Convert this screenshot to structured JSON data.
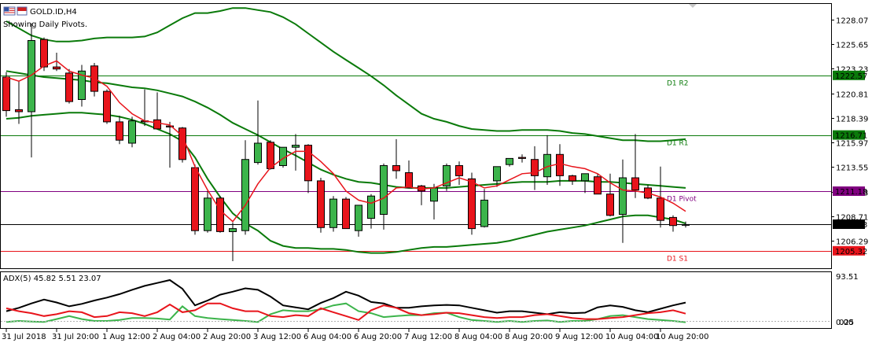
{
  "header": {
    "symbol_label": "GOLD.ID,H4",
    "indicator_note": "Showing Daily Pivots."
  },
  "colors": {
    "bull": "#3cb44b",
    "bear": "#e8141b",
    "band": "#0a7a0a",
    "ma": "#e8141b",
    "pivot_r": "#0a7a0a",
    "pivot_p": "#800080",
    "pivot_s": "#e8141b",
    "adx_main": "#000000",
    "adx_plus": "#3cb44b",
    "adx_minus": "#e8141b"
  },
  "chart_data": [
    {
      "type": "candlestick",
      "title": "GOLD.ID,H4",
      "subtitle": "Showing Daily Pivots.",
      "ylim": [
        1203.6,
        1229.6
      ],
      "y_ticks": [
        1228.07,
        1225.65,
        1223.23,
        1220.81,
        1218.39,
        1215.97,
        1213.55,
        1211.13,
        1208.71,
        1206.29
      ],
      "x_labels": [
        "31 Jul 2018",
        "31 Jul 20:00",
        "1 Aug 12:00",
        "2 Aug 04:00",
        "2 Aug 20:00",
        "3 Aug 12:00",
        "6 Aug 04:00",
        "6 Aug 20:00",
        "7 Aug 12:00",
        "8 Aug 04:00",
        "8 Aug 20:00",
        "9 Aug 12:00",
        "10 Aug 04:00",
        "10 Aug 20:00"
      ],
      "candles": [
        {
          "o": 1222.4,
          "h": 1222.9,
          "l": 1218.5,
          "c": 1219.1
        },
        {
          "o": 1219.2,
          "h": 1222.0,
          "l": 1217.8,
          "c": 1219.0
        },
        {
          "o": 1219.0,
          "h": 1227.7,
          "l": 1214.5,
          "c": 1226.0
        },
        {
          "o": 1226.1,
          "h": 1226.3,
          "l": 1223.0,
          "c": 1223.4
        },
        {
          "o": 1223.4,
          "h": 1224.8,
          "l": 1223.0,
          "c": 1223.2
        },
        {
          "o": 1222.8,
          "h": 1223.2,
          "l": 1219.8,
          "c": 1220.0
        },
        {
          "o": 1220.2,
          "h": 1223.6,
          "l": 1219.5,
          "c": 1223.0
        },
        {
          "o": 1223.5,
          "h": 1223.8,
          "l": 1220.5,
          "c": 1221.0
        },
        {
          "o": 1221.0,
          "h": 1221.2,
          "l": 1217.8,
          "c": 1218.0
        },
        {
          "o": 1218.0,
          "h": 1218.6,
          "l": 1215.8,
          "c": 1216.2
        },
        {
          "o": 1215.9,
          "h": 1218.5,
          "l": 1215.5,
          "c": 1218.1
        },
        {
          "o": 1218.1,
          "h": 1221.2,
          "l": 1217.6,
          "c": 1218.0
        },
        {
          "o": 1218.2,
          "h": 1220.9,
          "l": 1217.4,
          "c": 1217.3
        },
        {
          "o": 1217.6,
          "h": 1218.0,
          "l": 1213.5,
          "c": 1217.5
        },
        {
          "o": 1217.4,
          "h": 1217.5,
          "l": 1214.0,
          "c": 1214.3
        },
        {
          "o": 1213.5,
          "h": 1213.8,
          "l": 1206.9,
          "c": 1207.3
        },
        {
          "o": 1207.3,
          "h": 1211.2,
          "l": 1207.1,
          "c": 1210.5
        },
        {
          "o": 1210.5,
          "h": 1210.7,
          "l": 1207.1,
          "c": 1207.2
        },
        {
          "o": 1207.2,
          "h": 1208.1,
          "l": 1204.3,
          "c": 1207.5
        },
        {
          "o": 1207.3,
          "h": 1216.2,
          "l": 1206.9,
          "c": 1214.3
        },
        {
          "o": 1214.0,
          "h": 1220.1,
          "l": 1213.8,
          "c": 1215.9
        },
        {
          "o": 1216.0,
          "h": 1216.2,
          "l": 1213.3,
          "c": 1213.4
        },
        {
          "o": 1213.7,
          "h": 1215.3,
          "l": 1213.5,
          "c": 1215.5
        },
        {
          "o": 1215.5,
          "h": 1216.8,
          "l": 1213.2,
          "c": 1215.7
        },
        {
          "o": 1215.7,
          "h": 1215.8,
          "l": 1211.0,
          "c": 1212.2
        },
        {
          "o": 1212.2,
          "h": 1212.5,
          "l": 1207.1,
          "c": 1207.6
        },
        {
          "o": 1207.6,
          "h": 1210.7,
          "l": 1207.2,
          "c": 1210.4
        },
        {
          "o": 1210.4,
          "h": 1210.6,
          "l": 1207.5,
          "c": 1207.5
        },
        {
          "o": 1207.3,
          "h": 1209.8,
          "l": 1206.7,
          "c": 1209.8
        },
        {
          "o": 1208.5,
          "h": 1210.9,
          "l": 1207.5,
          "c": 1210.7
        },
        {
          "o": 1208.9,
          "h": 1213.9,
          "l": 1207.4,
          "c": 1213.7
        },
        {
          "o": 1213.7,
          "h": 1216.3,
          "l": 1212.4,
          "c": 1213.2
        },
        {
          "o": 1213.0,
          "h": 1214.2,
          "l": 1211.5,
          "c": 1211.5
        },
        {
          "o": 1211.7,
          "h": 1211.8,
          "l": 1209.8,
          "c": 1211.2
        },
        {
          "o": 1210.2,
          "h": 1211.9,
          "l": 1208.4,
          "c": 1211.5
        },
        {
          "o": 1211.7,
          "h": 1213.9,
          "l": 1211.2,
          "c": 1213.7
        },
        {
          "o": 1213.7,
          "h": 1214.1,
          "l": 1211.8,
          "c": 1212.7
        },
        {
          "o": 1212.4,
          "h": 1213.0,
          "l": 1206.9,
          "c": 1207.5
        },
        {
          "o": 1207.7,
          "h": 1211.4,
          "l": 1207.6,
          "c": 1210.3
        },
        {
          "o": 1212.2,
          "h": 1213.4,
          "l": 1211.6,
          "c": 1213.6
        },
        {
          "o": 1213.8,
          "h": 1214.3,
          "l": 1213.6,
          "c": 1214.4
        },
        {
          "o": 1214.5,
          "h": 1214.8,
          "l": 1214.0,
          "c": 1214.4
        },
        {
          "o": 1214.3,
          "h": 1215.6,
          "l": 1211.3,
          "c": 1212.7
        },
        {
          "o": 1212.6,
          "h": 1216.7,
          "l": 1211.8,
          "c": 1214.8
        },
        {
          "o": 1214.8,
          "h": 1215.8,
          "l": 1211.7,
          "c": 1212.7
        },
        {
          "o": 1212.7,
          "h": 1212.8,
          "l": 1211.8,
          "c": 1212.2
        },
        {
          "o": 1212.2,
          "h": 1212.9,
          "l": 1211.0,
          "c": 1212.9
        },
        {
          "o": 1212.6,
          "h": 1212.9,
          "l": 1210.9,
          "c": 1210.9
        },
        {
          "o": 1210.9,
          "h": 1212.9,
          "l": 1208.7,
          "c": 1208.8
        },
        {
          "o": 1208.9,
          "h": 1214.3,
          "l": 1206.1,
          "c": 1212.5
        },
        {
          "o": 1212.5,
          "h": 1216.8,
          "l": 1210.5,
          "c": 1211.3
        },
        {
          "o": 1211.5,
          "h": 1211.8,
          "l": 1210.4,
          "c": 1210.5
        },
        {
          "o": 1210.5,
          "h": 1213.6,
          "l": 1207.6,
          "c": 1208.3
        },
        {
          "o": 1208.6,
          "h": 1208.8,
          "l": 1207.2,
          "c": 1207.8
        },
        {
          "o": 1207.9,
          "h": 1208.2,
          "l": 1207.6,
          "c": 1207.9
        }
      ],
      "bands": {
        "upper": [
          1227.9,
          1227.2,
          1226.5,
          1226.1,
          1225.9,
          1225.9,
          1226.0,
          1226.2,
          1226.3,
          1226.3,
          1226.3,
          1226.4,
          1226.8,
          1227.5,
          1228.2,
          1228.7,
          1228.7,
          1228.9,
          1229.2,
          1229.2,
          1229.0,
          1228.8,
          1228.3,
          1227.6,
          1226.7,
          1225.8,
          1224.9,
          1224.1,
          1223.3,
          1222.5,
          1221.6,
          1220.6,
          1219.7,
          1218.8,
          1218.3,
          1218.0,
          1217.6,
          1217.3,
          1217.2,
          1217.1,
          1217.1,
          1217.2,
          1217.2,
          1217.2,
          1217.1,
          1216.9,
          1216.8,
          1216.6,
          1216.4,
          1216.2,
          1216.2,
          1216.1,
          1216.1,
          1216.2,
          1216.3
        ],
        "middle": [
          1223.0,
          1222.8,
          1222.6,
          1222.4,
          1222.3,
          1222.2,
          1222.1,
          1221.9,
          1221.8,
          1221.6,
          1221.4,
          1221.3,
          1221.1,
          1220.8,
          1220.5,
          1220.0,
          1219.4,
          1218.7,
          1217.9,
          1217.3,
          1216.7,
          1216.0,
          1215.3,
          1214.7,
          1214.0,
          1213.3,
          1212.8,
          1212.4,
          1212.1,
          1212.0,
          1211.8,
          1211.6,
          1211.5,
          1211.5,
          1211.5,
          1211.5,
          1211.6,
          1211.7,
          1211.8,
          1211.9,
          1212.0,
          1212.1,
          1212.1,
          1212.1,
          1212.2,
          1212.2,
          1212.2,
          1212.1,
          1212.1,
          1212.0,
          1211.9,
          1211.8,
          1211.7,
          1211.6,
          1211.5
        ],
        "lower": [
          1218.3,
          1218.4,
          1218.6,
          1218.7,
          1218.8,
          1218.9,
          1218.9,
          1218.8,
          1218.7,
          1218.5,
          1218.2,
          1217.8,
          1217.3,
          1216.8,
          1216.1,
          1214.5,
          1212.4,
          1210.6,
          1209.0,
          1208.0,
          1207.3,
          1206.3,
          1205.8,
          1205.6,
          1205.6,
          1205.5,
          1205.5,
          1205.4,
          1205.2,
          1205.1,
          1205.1,
          1205.2,
          1205.4,
          1205.6,
          1205.7,
          1205.7,
          1205.8,
          1205.9,
          1206.0,
          1206.1,
          1206.3,
          1206.6,
          1206.9,
          1207.2,
          1207.4,
          1207.6,
          1207.8,
          1208.1,
          1208.4,
          1208.7,
          1208.8,
          1208.8,
          1208.6,
          1208.4,
          1208.0
        ]
      },
      "moving_average": [
        1222.4,
        1222.0,
        1222.6,
        1223.5,
        1224.0,
        1223.0,
        1222.6,
        1222.3,
        1221.5,
        1219.9,
        1218.8,
        1218.1,
        1217.9,
        1217.7,
        1216.6,
        1213.6,
        1211.3,
        1209.3,
        1208.2,
        1209.8,
        1211.9,
        1213.5,
        1214.4,
        1215.1,
        1215.1,
        1214.1,
        1212.9,
        1211.2,
        1210.3,
        1210.0,
        1210.5,
        1211.5,
        1211.6,
        1211.4,
        1211.5,
        1212.0,
        1212.5,
        1212.1,
        1211.5,
        1211.7,
        1212.3,
        1212.9,
        1213.0,
        1213.6,
        1213.9,
        1213.6,
        1213.4,
        1212.9,
        1212.0,
        1211.3,
        1211.2,
        1211.0,
        1210.6,
        1210.0,
        1209.2
      ],
      "pivots": [
        {
          "label": "D1 R2",
          "value": 1222.57,
          "price_tag": "1222.57"
        },
        {
          "label": "D1 R1",
          "value": 1216.71,
          "price_tag": "1216.71"
        },
        {
          "label": "D1 Pivot",
          "value": 1211.18,
          "price_tag": "1211.18"
        },
        {
          "label": "D1 S1",
          "value": 1205.32,
          "price_tag": "1205.32"
        }
      ],
      "current_price": {
        "value": 1207.93,
        "price_tag": "1207.93"
      }
    },
    {
      "type": "line",
      "title": "ADX(5) 45.82 5.51 23.07",
      "ylim": [
        0,
        100
      ],
      "y_ticks_text": [
        "93.51",
        "0.00",
        "025"
      ],
      "series": [
        {
          "name": "ADX",
          "color": "#000000",
          "values": [
            28,
            35,
            44,
            52,
            46,
            38,
            43,
            50,
            56,
            63,
            72,
            80,
            86,
            92,
            74,
            40,
            50,
            62,
            68,
            75,
            72,
            58,
            40,
            36,
            32,
            45,
            55,
            68,
            60,
            47,
            44,
            35,
            35,
            38,
            40,
            41,
            40,
            35,
            30,
            25,
            28,
            28,
            25,
            22,
            26,
            24,
            25,
            36,
            40,
            37,
            30,
            26,
            33,
            40,
            45.82
          ]
        },
        {
          "name": "+DI",
          "color": "#3cb44b",
          "values": [
            6,
            8,
            7,
            6,
            12,
            18,
            12,
            8,
            8,
            10,
            14,
            14,
            13,
            11,
            38,
            18,
            14,
            12,
            10,
            8,
            6,
            22,
            30,
            28,
            28,
            32,
            40,
            44,
            28,
            24,
            16,
            18,
            20,
            20,
            24,
            25,
            16,
            10,
            8,
            6,
            8,
            6,
            8,
            9,
            6,
            8,
            8,
            12,
            18,
            20,
            16,
            12,
            10,
            8,
            5.51
          ]
        },
        {
          "name": "-DI",
          "color": "#e8141b",
          "values": [
            34,
            28,
            24,
            18,
            22,
            28,
            26,
            16,
            18,
            26,
            24,
            18,
            26,
            42,
            26,
            30,
            44,
            44,
            34,
            28,
            28,
            18,
            16,
            20,
            18,
            34,
            26,
            18,
            10,
            30,
            40,
            35,
            24,
            20,
            22,
            25,
            24,
            20,
            16,
            14,
            16,
            16,
            20,
            22,
            18,
            14,
            12,
            12,
            14,
            16,
            20,
            24,
            26,
            30,
            23.07
          ]
        }
      ]
    }
  ]
}
